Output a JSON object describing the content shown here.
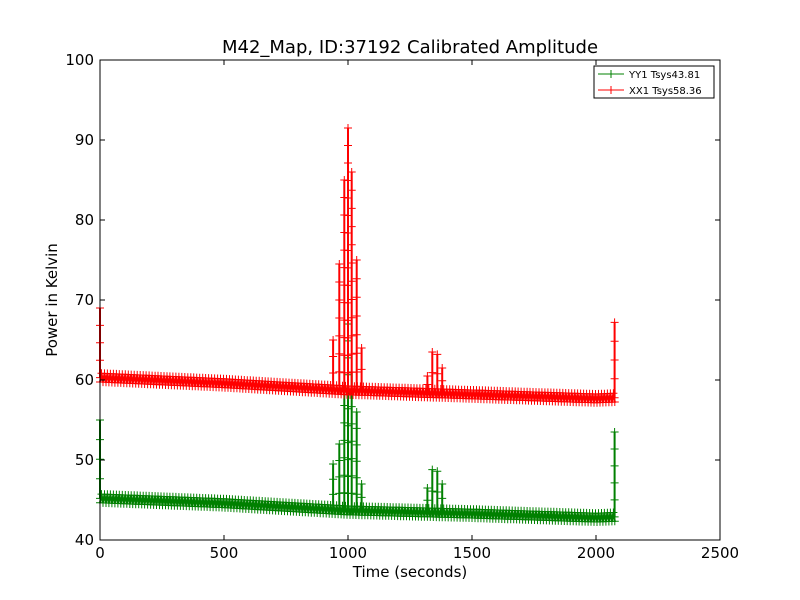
{
  "chart_data": {
    "type": "line",
    "title": "M42_Map, ID:37192 Calibrated Amplitude",
    "xlabel": "Time (seconds)",
    "ylabel": "Power in Kelvin",
    "xlim": [
      0,
      2500
    ],
    "ylim": [
      40,
      100
    ],
    "x_ticks": [
      0,
      500,
      1000,
      1500,
      2000,
      2500
    ],
    "y_ticks": [
      40,
      50,
      60,
      70,
      80,
      90,
      100
    ],
    "grid": false,
    "legend_placement": "top-right",
    "marker": "+",
    "series": [
      {
        "name": "YY1 Tsys43.81",
        "color": "#008000",
        "baseline": {
          "x": [
            0,
            500,
            1000,
            1500,
            2000,
            2080
          ],
          "y": [
            45.2,
            44.6,
            43.7,
            43.3,
            42.8,
            42.9
          ]
        },
        "spikes": [
          {
            "x": 0,
            "y": 55
          },
          {
            "x": 940,
            "y": 49.5
          },
          {
            "x": 965,
            "y": 52
          },
          {
            "x": 985,
            "y": 59
          },
          {
            "x": 1000,
            "y": 67
          },
          {
            "x": 1015,
            "y": 61
          },
          {
            "x": 1035,
            "y": 56
          },
          {
            "x": 1055,
            "y": 47
          },
          {
            "x": 1320,
            "y": 46.5
          },
          {
            "x": 1340,
            "y": 48.8
          },
          {
            "x": 1360,
            "y": 48.6
          },
          {
            "x": 1380,
            "y": 47
          },
          {
            "x": 2075,
            "y": 53.5
          }
        ]
      },
      {
        "name": "XX1 Tsys58.36",
        "color": "#ff0000",
        "baseline": {
          "x": [
            0,
            500,
            1000,
            1500,
            2000,
            2080
          ],
          "y": [
            60.3,
            59.6,
            58.7,
            58.2,
            57.7,
            57.8
          ]
        },
        "spikes": [
          {
            "x": 0,
            "y": 69
          },
          {
            "x": 940,
            "y": 65
          },
          {
            "x": 965,
            "y": 74.5
          },
          {
            "x": 985,
            "y": 85
          },
          {
            "x": 1000,
            "y": 91.5
          },
          {
            "x": 1015,
            "y": 86
          },
          {
            "x": 1035,
            "y": 75
          },
          {
            "x": 1055,
            "y": 64
          },
          {
            "x": 1320,
            "y": 60.5
          },
          {
            "x": 1340,
            "y": 63.5
          },
          {
            "x": 1360,
            "y": 63.2
          },
          {
            "x": 1380,
            "y": 61.5
          },
          {
            "x": 2075,
            "y": 67.2
          }
        ]
      }
    ]
  }
}
